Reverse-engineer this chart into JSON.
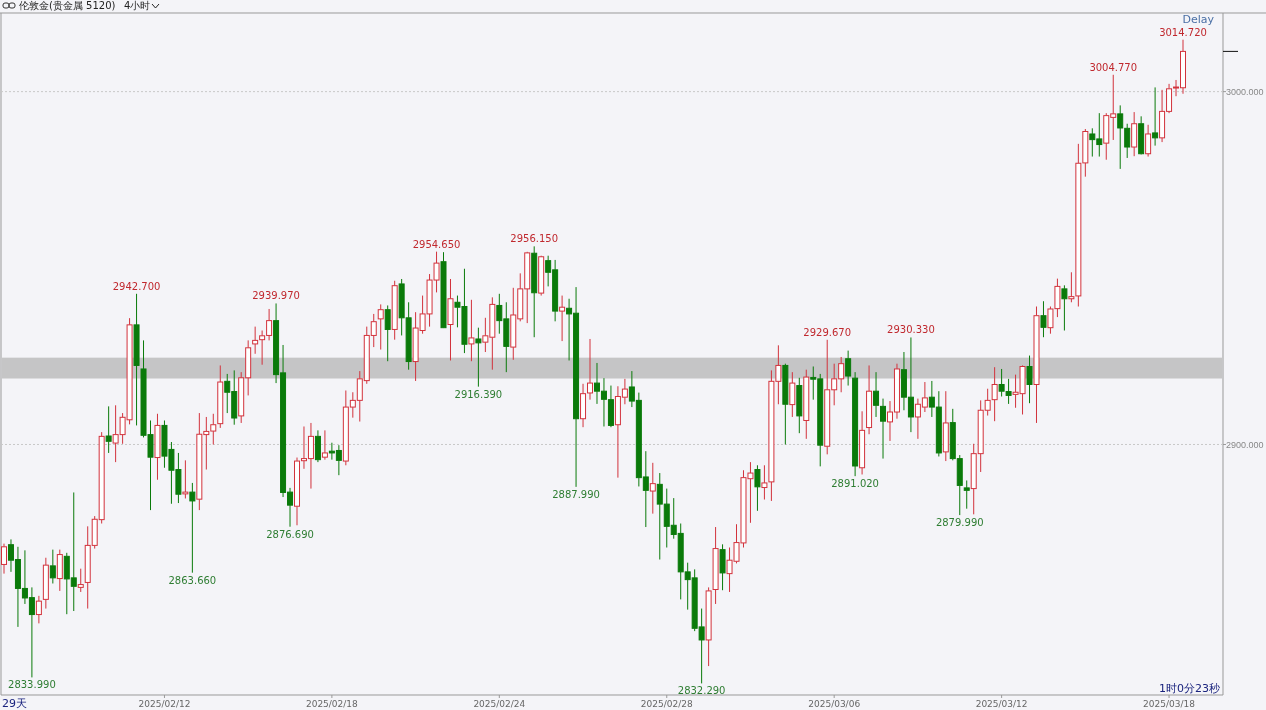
{
  "chart_data": {
    "type": "candlestick",
    "title": "伦敦金(贵金属 5120)",
    "subtitle": "4小时",
    "categories": [
      null,
      null,
      null,
      null,
      null,
      null,
      null,
      null,
      null,
      null,
      null,
      null,
      null,
      null,
      null,
      null,
      null,
      null,
      null,
      null,
      null,
      null,
      null,
      "2025/02/12",
      null,
      null,
      null,
      null,
      null,
      null,
      null,
      null,
      null,
      null,
      null,
      null,
      null,
      null,
      null,
      null,
      null,
      null,
      null,
      null,
      null,
      null,
      null,
      "2025/02/18",
      null,
      null,
      null,
      null,
      null,
      null,
      null,
      null,
      null,
      null,
      null,
      null,
      null,
      null,
      null,
      null,
      null,
      null,
      null,
      null,
      null,
      null,
      null,
      "2025/02/24",
      null,
      null,
      null,
      null,
      null,
      null,
      null,
      null,
      null,
      null,
      null,
      null,
      null,
      null,
      null,
      null,
      null,
      null,
      null,
      null,
      null,
      null,
      null,
      "2025/02/28",
      null,
      null,
      null,
      null,
      null,
      null,
      null,
      null,
      null,
      null,
      null,
      null,
      null,
      null,
      null,
      null,
      null,
      null,
      null,
      null,
      null,
      null,
      null,
      "2025/03/06",
      null,
      null,
      null,
      null,
      null,
      null,
      null,
      null,
      null,
      null,
      null,
      null,
      null,
      null,
      null,
      null,
      null,
      null,
      null,
      null,
      null,
      null,
      null,
      "2025/03/12",
      null,
      null,
      null,
      null,
      null,
      null,
      null,
      null,
      null,
      null,
      null,
      null,
      null,
      null,
      null,
      null,
      null,
      null,
      null,
      null,
      null,
      null,
      null,
      "2025/03/18",
      null,
      null
    ],
    "ohlc": [
      [
        2866.0,
        2871.9,
        2863.4,
        2871.0
      ],
      [
        2871.6,
        2873.1,
        2863.9,
        2867.2
      ],
      [
        2867.4,
        2871.0,
        2848.3,
        2859.2
      ],
      [
        2859.2,
        2870.0,
        2854.8,
        2856.5
      ],
      [
        2856.6,
        2859.5,
        2833.99,
        2851.8
      ],
      [
        2851.8,
        2857.1,
        2849.3,
        2855.6
      ],
      [
        2856.1,
        2867.9,
        2853.5,
        2865.8
      ],
      [
        2865.6,
        2870.2,
        2860.6,
        2862.2
      ],
      [
        2862.0,
        2870.2,
        2858.5,
        2868.8
      ],
      [
        2868.3,
        2869.3,
        2851.9,
        2861.9
      ],
      [
        2862.2,
        2886.4,
        2852.8,
        2859.8
      ],
      [
        2859.5,
        2864.8,
        2858.2,
        2860.3
      ],
      [
        2860.9,
        2876.8,
        2853.5,
        2871.4
      ],
      [
        2871.4,
        2879.7,
        2870.5,
        2878.8
      ],
      [
        2878.7,
        2903.5,
        2877.6,
        2902.3
      ],
      [
        2902.4,
        2910.8,
        2897.6,
        2900.9
      ],
      [
        2900.4,
        2911.1,
        2895.0,
        2902.8
      ],
      [
        2902.8,
        2908.9,
        2900.2,
        2907.7
      ],
      [
        2907.0,
        2935.8,
        2905.7,
        2933.9
      ],
      [
        2933.9,
        2942.7,
        2905.4,
        2922.4
      ],
      [
        2921.4,
        2929.5,
        2902.0,
        2902.6
      ],
      [
        2902.8,
        2906.8,
        2881.4,
        2896.4
      ],
      [
        2896.3,
        2908.7,
        2890.0,
        2905.4
      ],
      [
        2905.4,
        2906.8,
        2893.4,
        2896.7
      ],
      [
        2898.6,
        2900.7,
        2883.2,
        2892.7
      ],
      [
        2892.9,
        2897.6,
        2883.4,
        2885.9
      ],
      [
        2886.0,
        2895.5,
        2884.7,
        2886.5
      ],
      [
        2886.5,
        2889.1,
        2863.66,
        2884.0
      ],
      [
        2884.5,
        2908.9,
        2881.4,
        2902.9
      ],
      [
        2902.8,
        2907.8,
        2892.9,
        2903.7
      ],
      [
        2903.8,
        2908.7,
        2900.0,
        2905.6
      ],
      [
        2905.9,
        2922.4,
        2904.7,
        2917.7
      ],
      [
        2917.9,
        2920.0,
        2908.9,
        2914.8
      ],
      [
        2915.0,
        2921.0,
        2905.6,
        2907.5
      ],
      [
        2908.1,
        2920.5,
        2906.1,
        2918.9
      ],
      [
        2918.9,
        2929.5,
        2913.9,
        2927.4
      ],
      [
        2928.5,
        2933.4,
        2925.7,
        2929.5
      ],
      [
        2929.7,
        2932.3,
        2922.6,
        2930.8
      ],
      [
        2930.9,
        2938.4,
        2929.5,
        2935.1
      ],
      [
        2935.1,
        2939.97,
        2917.4,
        2919.8
      ],
      [
        2920.3,
        2928.2,
        2885.1,
        2886.4
      ],
      [
        2886.5,
        2887.7,
        2876.69,
        2882.8
      ],
      [
        2882.5,
        2896.3,
        2877.1,
        2895.3
      ],
      [
        2895.4,
        2905.1,
        2893.1,
        2896.0
      ],
      [
        2896.0,
        2906.1,
        2887.5,
        2902.3
      ],
      [
        2902.3,
        2904.0,
        2895.0,
        2895.7
      ],
      [
        2896.4,
        2904.0,
        2895.7,
        2897.6
      ],
      [
        2898.1,
        2900.5,
        2895.7,
        2897.6
      ],
      [
        2898.3,
        2899.8,
        2891.3,
        2895.5
      ],
      [
        2895.3,
        2915.3,
        2894.1,
        2910.6
      ],
      [
        2910.6,
        2914.8,
        2907.6,
        2912.5
      ],
      [
        2912.5,
        2920.8,
        2906.5,
        2918.6
      ],
      [
        2918.1,
        2933.4,
        2917.2,
        2930.9
      ],
      [
        2930.9,
        2937.0,
        2927.6,
        2934.8
      ],
      [
        2935.6,
        2939.7,
        2926.9,
        2938.2
      ],
      [
        2938.2,
        2939.4,
        2923.6,
        2932.6
      ],
      [
        2932.6,
        2946.4,
        2929.7,
        2945.0
      ],
      [
        2945.5,
        2946.9,
        2930.9,
        2935.9
      ],
      [
        2935.9,
        2940.3,
        2921.2,
        2923.5
      ],
      [
        2923.5,
        2937.5,
        2918.0,
        2933.0
      ],
      [
        2932.3,
        2942.2,
        2931.4,
        2937.0
      ],
      [
        2937.0,
        2948.3,
        2933.4,
        2946.6
      ],
      [
        2946.6,
        2954.65,
        2943.1,
        2951.4
      ],
      [
        2951.8,
        2954.5,
        2933.0,
        2933.1
      ],
      [
        2934.0,
        2946.9,
        2923.8,
        2941.3
      ],
      [
        2940.3,
        2942.2,
        2933.2,
        2938.9
      ],
      [
        2939.1,
        2949.8,
        2925.9,
        2928.4
      ],
      [
        2928.5,
        2941.0,
        2923.6,
        2930.2
      ],
      [
        2929.9,
        2933.1,
        2916.39,
        2928.8
      ],
      [
        2929.0,
        2935.9,
        2926.2,
        2930.8
      ],
      [
        2930.4,
        2941.7,
        2921.2,
        2939.7
      ],
      [
        2939.4,
        2942.7,
        2931.4,
        2935.1
      ],
      [
        2935.6,
        2940.3,
        2920.5,
        2927.8
      ],
      [
        2927.6,
        2944.4,
        2924.0,
        2936.7
      ],
      [
        2935.6,
        2948.5,
        2934.9,
        2944.1
      ],
      [
        2944.1,
        2954.6,
        2934.4,
        2954.3
      ],
      [
        2954.2,
        2956.15,
        2930.4,
        2943.0
      ],
      [
        2942.9,
        2953.5,
        2942.2,
        2953.2
      ],
      [
        2952.1,
        2953.5,
        2944.8,
        2948.8
      ],
      [
        2949.5,
        2952.3,
        2934.9,
        2937.8
      ],
      [
        2937.8,
        2942.2,
        2929.3,
        2938.9
      ],
      [
        2938.6,
        2941.3,
        2923.8,
        2937.0
      ],
      [
        2937.2,
        2944.6,
        2887.99,
        2907.3
      ],
      [
        2907.3,
        2917.2,
        2904.9,
        2914.4
      ],
      [
        2914.6,
        2929.9,
        2912.7,
        2917.4
      ],
      [
        2917.4,
        2923.1,
        2911.5,
        2915.1
      ],
      [
        2915.1,
        2918.8,
        2905.1,
        2912.8
      ],
      [
        2912.7,
        2916.7,
        2904.9,
        2905.4
      ],
      [
        2905.6,
        2916.5,
        2890.6,
        2913.6
      ],
      [
        2913.4,
        2918.6,
        2911.4,
        2915.7
      ],
      [
        2916.3,
        2920.8,
        2910.6,
        2912.3
      ],
      [
        2912.5,
        2914.7,
        2888.1,
        2890.6
      ],
      [
        2890.8,
        2898.1,
        2876.6,
        2887.0
      ],
      [
        2886.8,
        2894.8,
        2880.4,
        2888.9
      ],
      [
        2888.7,
        2891.9,
        2867.4,
        2883.1
      ],
      [
        2883.1,
        2887.5,
        2870.8,
        2876.8
      ],
      [
        2877.1,
        2884.8,
        2873.3,
        2874.5
      ],
      [
        2874.8,
        2877.6,
        2856.1,
        2863.9
      ],
      [
        2863.9,
        2866.5,
        2853.2,
        2861.7
      ],
      [
        2862.2,
        2864.6,
        2847.1,
        2847.9
      ],
      [
        2848.3,
        2853.5,
        2832.29,
        2844.6
      ],
      [
        2844.6,
        2859.5,
        2837.2,
        2858.5
      ],
      [
        2858.9,
        2876.6,
        2854.8,
        2870.5
      ],
      [
        2870.2,
        2871.7,
        2858.7,
        2863.6
      ],
      [
        2863.4,
        2870.8,
        2858.2,
        2867.2
      ],
      [
        2866.9,
        2877.4,
        2866.3,
        2872.2
      ],
      [
        2872.1,
        2892.7,
        2870.8,
        2890.6
      ],
      [
        2890.3,
        2895.0,
        2877.8,
        2891.9
      ],
      [
        2892.9,
        2894.1,
        2881.2,
        2888.0
      ],
      [
        2887.8,
        2894.1,
        2884.4,
        2889.1
      ],
      [
        2889.4,
        2921.0,
        2884.0,
        2917.9
      ],
      [
        2917.9,
        2928.1,
        2911.4,
        2922.4
      ],
      [
        2922.4,
        2922.9,
        2900.0,
        2911.4
      ],
      [
        2911.3,
        2920.5,
        2907.8,
        2917.4
      ],
      [
        2916.7,
        2918.9,
        2903.2,
        2908.1
      ],
      [
        2906.8,
        2921.2,
        2901.6,
        2919.1
      ],
      [
        2919.0,
        2922.1,
        2912.7,
        2918.5
      ],
      [
        2918.6,
        2920.0,
        2893.8,
        2899.8
      ],
      [
        2899.5,
        2929.67,
        2897.2,
        2915.5
      ],
      [
        2915.5,
        2922.9,
        2911.1,
        2918.6
      ],
      [
        2918.6,
        2924.8,
        2914.8,
        2922.9
      ],
      [
        2924.3,
        2926.6,
        2916.7,
        2919.4
      ],
      [
        2918.8,
        2920.5,
        2891.02,
        2893.9
      ],
      [
        2893.4,
        2909.4,
        2891.5,
        2904.0
      ],
      [
        2904.8,
        2922.4,
        2902.9,
        2915.1
      ],
      [
        2915.1,
        2920.5,
        2907.8,
        2911.1
      ],
      [
        2910.8,
        2913.0,
        2896.0,
        2906.6
      ],
      [
        2906.4,
        2912.3,
        2901.0,
        2909.2
      ],
      [
        2909.2,
        2922.9,
        2907.3,
        2921.4
      ],
      [
        2921.2,
        2926.2,
        2909.7,
        2913.4
      ],
      [
        2913.4,
        2930.33,
        2903.5,
        2907.8
      ],
      [
        2907.8,
        2913.0,
        2901.6,
        2911.4
      ],
      [
        2910.6,
        2917.7,
        2909.2,
        2913.2
      ],
      [
        2913.4,
        2918.0,
        2907.8,
        2910.6
      ],
      [
        2910.6,
        2915.1,
        2896.6,
        2897.6
      ],
      [
        2897.9,
        2915.1,
        2895.3,
        2906.1
      ],
      [
        2906.2,
        2910.1,
        2895.5,
        2896.0
      ],
      [
        2896.0,
        2897.0,
        2879.99,
        2888.4
      ],
      [
        2887.7,
        2889.8,
        2881.8,
        2887.0
      ],
      [
        2887.5,
        2900.2,
        2880.2,
        2897.4
      ],
      [
        2897.4,
        2912.5,
        2892.2,
        2909.7
      ],
      [
        2909.7,
        2915.8,
        2908.2,
        2912.5
      ],
      [
        2912.7,
        2921.9,
        2906.6,
        2917.0
      ],
      [
        2917.0,
        2921.4,
        2913.6,
        2915.1
      ],
      [
        2915.0,
        2918.6,
        2911.5,
        2913.9
      ],
      [
        2914.2,
        2919.8,
        2910.4,
        2914.8
      ],
      [
        2914.4,
        2922.4,
        2908.5,
        2922.1
      ],
      [
        2922.1,
        2925.2,
        2911.7,
        2917.0
      ],
      [
        2917.0,
        2939.1,
        2906.1,
        2936.5
      ],
      [
        2936.5,
        2940.6,
        2930.4,
        2933.2
      ],
      [
        2933.1,
        2939.1,
        2931.4,
        2938.4
      ],
      [
        2938.5,
        2947.0,
        2936.1,
        2944.8
      ],
      [
        2944.1,
        2945.1,
        2932.3,
        2941.3
      ],
      [
        2941.3,
        2948.8,
        2940.3,
        2941.9
      ],
      [
        2942.1,
        2985.2,
        2939.1,
        2979.7
      ],
      [
        2979.8,
        2989.4,
        2975.9,
        2988.7
      ],
      [
        2988.0,
        2989.6,
        2981.6,
        2986.4
      ],
      [
        2986.6,
        2993.9,
        2981.6,
        2985.0
      ],
      [
        2985.4,
        2993.9,
        2980.7,
        2993.2
      ],
      [
        2992.7,
        3004.77,
        2986.3,
        2993.7
      ],
      [
        2993.7,
        2996.1,
        2978.1,
        2989.7
      ],
      [
        2989.6,
        2990.9,
        2981.2,
        2984.3
      ],
      [
        2984.3,
        2994.2,
        2981.7,
        2990.9
      ],
      [
        2990.9,
        2993.0,
        2982.2,
        2982.4
      ],
      [
        2982.4,
        2990.6,
        2981.6,
        2988.0
      ],
      [
        2988.3,
        3001.2,
        2984.7,
        2986.9
      ],
      [
        2986.9,
        3000.5,
        2985.7,
        2994.4
      ],
      [
        2994.4,
        3002.2,
        2993.9,
        3000.8
      ],
      [
        3001.1,
        3003.3,
        2998.7,
        3001.3
      ],
      [
        3001.1,
        3014.72,
        2999.4,
        3011.4
      ]
    ],
    "ylim": [
      2829,
      3022
    ],
    "yticks": [
      {
        "value": 2900,
        "label": "2900.000"
      },
      {
        "value": 3000,
        "label": "3000.000"
      }
    ],
    "grid": "y",
    "bands": [
      {
        "axis": "y",
        "from": 2918.7,
        "to": 2924.6,
        "color": "#c0c0c0"
      }
    ],
    "annotations": [
      {
        "text": "2942.700",
        "y": 2942.7
      },
      {
        "text": "2939.970",
        "y": 2939.97
      },
      {
        "text": "2954.650",
        "y": 2954.65
      },
      {
        "text": "2956.150",
        "y": 2956.15
      },
      {
        "text": "2929.670",
        "y": 2929.67
      },
      {
        "text": "2930.330",
        "y": 2930.33
      },
      {
        "text": "3004.770",
        "y": 3004.77
      },
      {
        "text": "3014.720",
        "y": 3014.72
      },
      {
        "text": "2833.990",
        "y": 2833.99
      },
      {
        "text": "2863.660",
        "y": 2863.66
      },
      {
        "text": "2876.690",
        "y": 2876.69
      },
      {
        "text": "2916.390",
        "y": 2916.39
      },
      {
        "text": "2887.990",
        "y": 2887.99
      },
      {
        "text": "2832.290",
        "y": 2832.29
      },
      {
        "text": "2891.020",
        "y": 2891.02
      },
      {
        "text": "2879.990",
        "y": 2879.99
      },
      "Delay",
      "29天",
      "1时0分23秒"
    ]
  }
}
